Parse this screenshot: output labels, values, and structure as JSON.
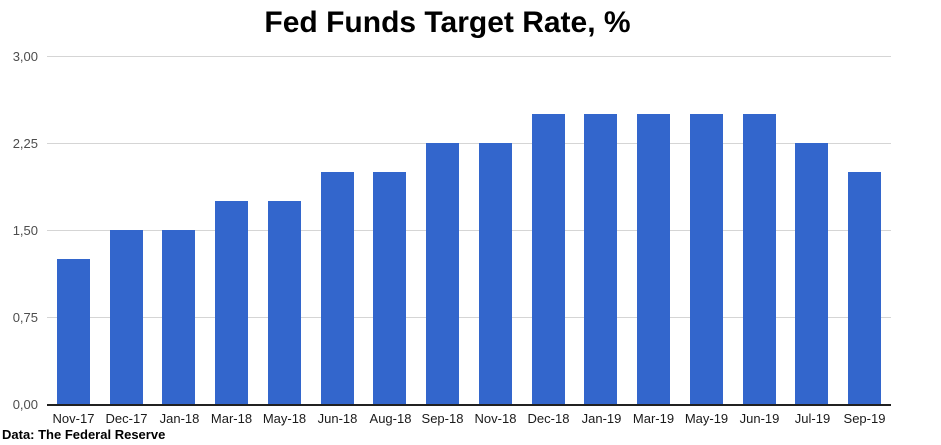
{
  "title": "Fed Funds Target Rate, %",
  "footer": "Data: The Federal Reserve",
  "colors": {
    "bar": "#3366cc",
    "gridline": "#d5d5d5",
    "axis_line": "#212121",
    "y_label": "#4d4d4d",
    "x_label": "#1a1a1a",
    "title": "#000000"
  },
  "chart_data": {
    "type": "bar",
    "title": "Fed Funds Target Rate, %",
    "xlabel": "",
    "ylabel": "",
    "categories": [
      "Nov-17",
      "Dec-17",
      "Jan-18",
      "Mar-18",
      "May-18",
      "Jun-18",
      "Aug-18",
      "Sep-18",
      "Nov-18",
      "Dec-18",
      "Jan-19",
      "Mar-19",
      "May-19",
      "Jun-19",
      "Jul-19",
      "Sep-19"
    ],
    "values": [
      1.25,
      1.5,
      1.5,
      1.75,
      1.75,
      2.0,
      2.0,
      2.25,
      2.25,
      2.5,
      2.5,
      2.5,
      2.5,
      2.5,
      2.25,
      2.0
    ],
    "ylim": [
      0,
      3
    ],
    "ytick_values": [
      0,
      0.75,
      1.5,
      2.25,
      3
    ],
    "ytick_labels": [
      "0,00",
      "0,75",
      "1,50",
      "2,25",
      "3,00"
    ],
    "grid": true,
    "legend": "none",
    "source_note": "Data: The Federal Reserve"
  }
}
